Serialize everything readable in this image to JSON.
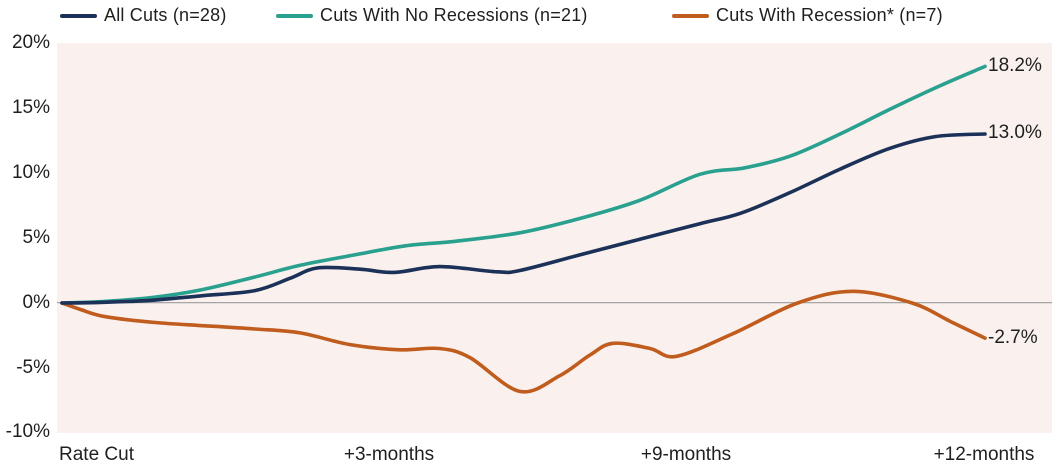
{
  "colors": {
    "plot_bg": "#faf1ee",
    "zero_line": "#9b9b9b",
    "navy": "#1b3158",
    "teal": "#2aa08f",
    "orange": "#c05c1e",
    "text": "#1f1f1f"
  },
  "legend": [
    {
      "label": "All Cuts (n=28)",
      "color": "#1b3158"
    },
    {
      "label": "Cuts With No Recessions (n=21)",
      "color": "#2aa08f"
    },
    {
      "label": "Cuts With Recession* (n=7)",
      "color": "#c05c1e"
    }
  ],
  "chart_data": {
    "type": "line",
    "title": "",
    "xlabel": "",
    "ylabel": "",
    "x_tick_labels": [
      "Rate Cut",
      "+3-months",
      "+9-months",
      "+12-months"
    ],
    "y_tick_labels": [
      "20%",
      "15%",
      "10%",
      "5%",
      "0%",
      "-5%",
      "-10%"
    ],
    "ylim": [
      -10,
      20
    ],
    "grid": "zero-line-only",
    "legend_position": "top",
    "series": [
      {
        "name": "All Cuts (n=28)",
        "color": "#1b3158",
        "end_label": "13.0%",
        "end_value": 13.0,
        "points": [
          [
            0.0,
            0.0
          ],
          [
            0.041,
            0.05
          ],
          [
            0.095,
            0.2
          ],
          [
            0.15,
            0.55
          ],
          [
            0.209,
            0.95
          ],
          [
            0.247,
            1.9
          ],
          [
            0.277,
            2.7
          ],
          [
            0.323,
            2.6
          ],
          [
            0.36,
            2.35
          ],
          [
            0.409,
            2.8
          ],
          [
            0.471,
            2.4
          ],
          [
            0.496,
            2.5
          ],
          [
            0.561,
            3.7
          ],
          [
            0.626,
            4.9
          ],
          [
            0.691,
            6.1
          ],
          [
            0.735,
            6.9
          ],
          [
            0.789,
            8.5
          ],
          [
            0.843,
            10.3
          ],
          [
            0.897,
            11.9
          ],
          [
            0.946,
            12.8
          ],
          [
            1.0,
            13.0
          ]
        ]
      },
      {
        "name": "Cuts With No Recessions (n=21)",
        "color": "#2aa08f",
        "end_label": "18.2%",
        "end_value": 18.2,
        "points": [
          [
            0.0,
            0.0
          ],
          [
            0.041,
            0.1
          ],
          [
            0.095,
            0.4
          ],
          [
            0.15,
            1.0
          ],
          [
            0.209,
            2.0
          ],
          [
            0.258,
            2.9
          ],
          [
            0.317,
            3.7
          ],
          [
            0.372,
            4.4
          ],
          [
            0.426,
            4.75
          ],
          [
            0.496,
            5.4
          ],
          [
            0.561,
            6.5
          ],
          [
            0.626,
            7.9
          ],
          [
            0.691,
            9.9
          ],
          [
            0.74,
            10.4
          ],
          [
            0.789,
            11.3
          ],
          [
            0.843,
            13.0
          ],
          [
            0.897,
            14.9
          ],
          [
            0.951,
            16.7
          ],
          [
            1.0,
            18.2
          ]
        ]
      },
      {
        "name": "Cuts With Recession* (n=7)",
        "color": "#c05c1e",
        "end_label": "-2.7%",
        "end_value": -2.7,
        "points": [
          [
            0.0,
            0.0
          ],
          [
            0.02,
            -0.5
          ],
          [
            0.047,
            -1.05
          ],
          [
            0.101,
            -1.5
          ],
          [
            0.155,
            -1.75
          ],
          [
            0.209,
            -2.0
          ],
          [
            0.258,
            -2.3
          ],
          [
            0.312,
            -3.2
          ],
          [
            0.366,
            -3.6
          ],
          [
            0.409,
            -3.5
          ],
          [
            0.442,
            -4.2
          ],
          [
            0.496,
            -6.8
          ],
          [
            0.539,
            -5.6
          ],
          [
            0.572,
            -4.0
          ],
          [
            0.597,
            -3.1
          ],
          [
            0.637,
            -3.5
          ],
          [
            0.666,
            -4.1
          ],
          [
            0.727,
            -2.35
          ],
          [
            0.797,
            0.0
          ],
          [
            0.857,
            0.9
          ],
          [
            0.921,
            0.0
          ],
          [
            0.962,
            -1.4
          ],
          [
            1.0,
            -2.7
          ]
        ]
      }
    ]
  }
}
